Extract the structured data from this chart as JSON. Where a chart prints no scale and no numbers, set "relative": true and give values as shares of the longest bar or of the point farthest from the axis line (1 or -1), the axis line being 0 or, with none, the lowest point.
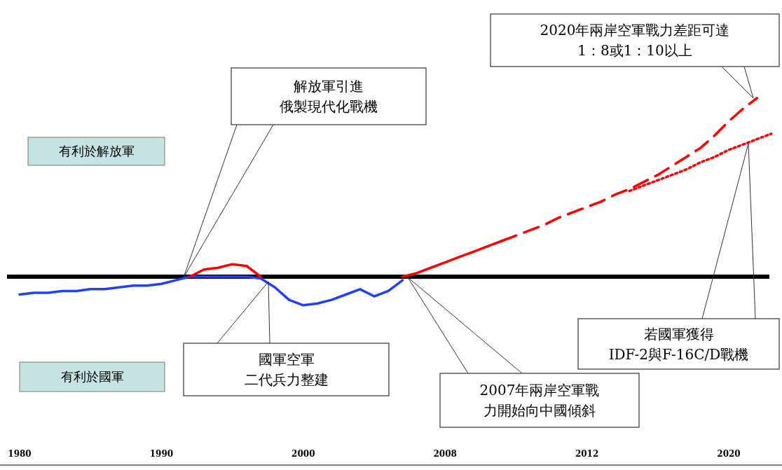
{
  "chart_data": {
    "type": "line",
    "relative": true,
    "categories": [
      null,
      "1980",
      null,
      null,
      null,
      null,
      null,
      null,
      null,
      null,
      null,
      "1990",
      null,
      null,
      null,
      null,
      null,
      null,
      null,
      null,
      null,
      "2000",
      null,
      null,
      null,
      null,
      null,
      null,
      null,
      null,
      null,
      "2008",
      null,
      null,
      null,
      null,
      null,
      null,
      null,
      null,
      null,
      "2012",
      null,
      null,
      null,
      null,
      null,
      null,
      null,
      null,
      null,
      "2020",
      null,
      null,
      null
    ],
    "series": [
      {
        "color": "#2040ff",
        "line_style": "solid",
        "values": [
          null,
          -0.1,
          -0.09,
          -0.09,
          -0.08,
          -0.08,
          -0.07,
          -0.07,
          -0.06,
          -0.05,
          -0.05,
          -0.04,
          -0.02,
          0,
          0,
          0,
          0,
          0,
          -0.01,
          -0.06,
          -0.13,
          -0.16,
          -0.15,
          -0.13,
          -0.1,
          -0.07,
          -0.11,
          -0.08,
          -0.02,
          null,
          null,
          null,
          null,
          null,
          null,
          null,
          null,
          null,
          null,
          null,
          null,
          null,
          null,
          null,
          null,
          null,
          null,
          null,
          null,
          null,
          null,
          null,
          null,
          null,
          null
        ]
      },
      {
        "color": "#ff0000",
        "line_style": "solid",
        "values": [
          null,
          null,
          null,
          null,
          null,
          null,
          null,
          null,
          null,
          null,
          null,
          null,
          null,
          0,
          0.04,
          0.05,
          0.07,
          0.06,
          0,
          null,
          null,
          null,
          null,
          null,
          null,
          null,
          null,
          null,
          null,
          null,
          null,
          null,
          null,
          null,
          null,
          null,
          null,
          null,
          null,
          null,
          null,
          null,
          null,
          null,
          null,
          null,
          null,
          null,
          null,
          null,
          null,
          null,
          null,
          null,
          null
        ]
      },
      {
        "color": "#ff0000",
        "line_style": "solid",
        "values": [
          null,
          null,
          null,
          null,
          null,
          null,
          null,
          null,
          null,
          null,
          null,
          null,
          null,
          null,
          null,
          null,
          null,
          null,
          null,
          null,
          null,
          null,
          null,
          null,
          null,
          null,
          null,
          null,
          0,
          0.02,
          0.05,
          0.08,
          0.11,
          0.14,
          0.17,
          0.2,
          null,
          null,
          null,
          null,
          null,
          null,
          null,
          null,
          null,
          null,
          null,
          null,
          null,
          null,
          null,
          null,
          null,
          null,
          null
        ]
      },
      {
        "color": "#ff0000",
        "line_style": "dashed",
        "values": [
          null,
          null,
          null,
          null,
          null,
          null,
          null,
          null,
          null,
          null,
          null,
          null,
          null,
          null,
          null,
          null,
          null,
          null,
          null,
          null,
          null,
          null,
          null,
          null,
          null,
          null,
          null,
          null,
          null,
          null,
          null,
          null,
          null,
          null,
          null,
          0.2,
          0.23,
          0.26,
          0.29,
          0.33,
          0.36,
          0.39,
          0.42,
          0.46,
          0.49,
          0.53,
          0.57,
          0.62,
          0.67,
          0.72,
          0.79,
          0.87,
          0.94,
          1,
          null
        ]
      },
      {
        "color": "#ff0000",
        "line_style": "dotted",
        "values": [
          null,
          null,
          null,
          null,
          null,
          null,
          null,
          null,
          null,
          null,
          null,
          null,
          null,
          null,
          null,
          null,
          null,
          null,
          null,
          null,
          null,
          null,
          null,
          null,
          null,
          null,
          null,
          null,
          null,
          null,
          null,
          null,
          null,
          null,
          null,
          null,
          null,
          null,
          null,
          null,
          null,
          null,
          null,
          null,
          0.48,
          0.51,
          0.54,
          0.57,
          0.6,
          0.64,
          0.67,
          0.71,
          0.74,
          0.77,
          0.8
        ]
      }
    ],
    "ref_lines": [
      {
        "axis": "y",
        "value": 0,
        "color": "#000000"
      }
    ],
    "annotations": [
      "有利於解放軍",
      "有利於國軍",
      "解放軍引進俄製現代化戰機",
      "國軍空軍二代兵力整建",
      "2007年兩岸空軍戰力開始向中國傾斜",
      "2020年兩岸空軍戰力差距可達1：8或1：10以上",
      "若國軍獲得IDF-2與F-16C/D戰機"
    ]
  }
}
